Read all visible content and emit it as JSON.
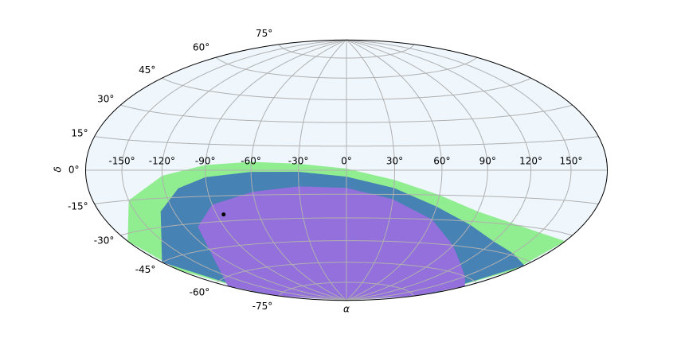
{
  "chart_data": {
    "type": "skymap",
    "projection": "hammer",
    "grid": true,
    "background": "#eff7fd",
    "xlabel": "α",
    "ylabel": "δ",
    "xticks": [
      {
        "value": -150,
        "label": "-150°"
      },
      {
        "value": -120,
        "label": "-120°"
      },
      {
        "value": -90,
        "label": "-90°"
      },
      {
        "value": -60,
        "label": "-60°"
      },
      {
        "value": -30,
        "label": "-30°"
      },
      {
        "value": 0,
        "label": "0°"
      },
      {
        "value": 30,
        "label": "30°"
      },
      {
        "value": 60,
        "label": "60°"
      },
      {
        "value": 90,
        "label": "90°"
      },
      {
        "value": 120,
        "label": "120°"
      },
      {
        "value": 150,
        "label": "150°"
      }
    ],
    "yticks": [
      {
        "value": -75,
        "label": "-75°"
      },
      {
        "value": -60,
        "label": "-60°"
      },
      {
        "value": -45,
        "label": "-45°"
      },
      {
        "value": -30,
        "label": "-30°"
      },
      {
        "value": -15,
        "label": "-15°"
      },
      {
        "value": 0,
        "label": "0°"
      },
      {
        "value": 15,
        "label": "15°"
      },
      {
        "value": 30,
        "label": "30°"
      },
      {
        "value": 45,
        "label": "45°"
      },
      {
        "value": 60,
        "label": "60°"
      },
      {
        "value": 75,
        "label": "75°"
      }
    ],
    "xlim": [
      -180,
      180
    ],
    "ylim": [
      -90,
      90
    ],
    "regions": [
      {
        "color": "#90ee90",
        "lon": [
          -180,
          -150,
          -120,
          -90,
          -60,
          -30,
          0,
          30,
          60,
          90,
          120,
          150,
          180,
          180,
          180,
          180,
          -180,
          -180,
          -180
        ],
        "lat": [
          -33,
          -15,
          -3,
          3,
          5,
          4,
          1,
          -6,
          -15,
          -24,
          -29,
          -32,
          -33,
          -50,
          -70,
          -90,
          -90,
          -70,
          -50
        ]
      },
      {
        "color": "#4682b4",
        "lon": [
          -180,
          -130,
          -110,
          -90,
          -60,
          -30,
          0,
          30,
          60,
          90,
          120,
          150,
          180,
          180,
          180,
          -180,
          -180
        ],
        "lat": [
          -45,
          -22,
          -10,
          -4,
          -1,
          -1,
          -4,
          -11,
          -22,
          -32,
          -40,
          -44,
          -47,
          -70,
          -90,
          -90,
          -70
        ]
      },
      {
        "color": "#9370db",
        "lon": [
          -180,
          -120,
          -110,
          -90,
          -60,
          -30,
          0,
          30,
          60,
          90,
          120,
          150,
          180,
          180,
          180,
          -180,
          -180
        ],
        "lat": [
          -63,
          -45,
          -32,
          -20,
          -13,
          -10,
          -11,
          -18,
          -30,
          -45,
          -55,
          -60,
          -63,
          -75,
          -90,
          -90,
          -75
        ]
      }
    ],
    "point": {
      "lon": -85,
      "lat": -26,
      "color": "#000000"
    }
  }
}
